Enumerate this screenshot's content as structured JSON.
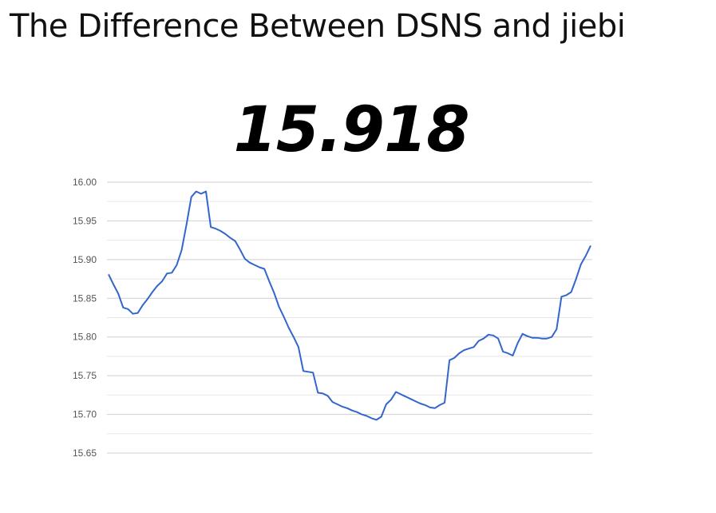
{
  "header": {
    "title": "The Difference Between DSNS and jiebi"
  },
  "current_value": "15.918",
  "chart_data": {
    "type": "line",
    "title": "",
    "xlabel": "",
    "ylabel": "",
    "ylim": [
      15.65,
      16.0
    ],
    "yticks": [
      "16.00",
      "15.95",
      "15.90",
      "15.85",
      "15.80",
      "15.75",
      "15.70",
      "15.65"
    ],
    "grid": true,
    "series": [
      {
        "color": "#3366cc",
        "values": [
          15.881,
          15.868,
          15.856,
          15.838,
          15.836,
          15.83,
          15.831,
          15.841,
          15.849,
          15.858,
          15.866,
          15.872,
          15.882,
          15.883,
          15.893,
          15.912,
          15.945,
          15.981,
          15.988,
          15.985,
          15.988,
          15.942,
          15.94,
          15.937,
          15.933,
          15.928,
          15.924,
          15.913,
          15.901,
          15.896,
          15.893,
          15.89,
          15.888,
          15.872,
          15.857,
          15.839,
          15.826,
          15.812,
          15.8,
          15.787,
          15.756,
          15.755,
          15.754,
          15.728,
          15.727,
          15.724,
          15.716,
          15.713,
          15.71,
          15.708,
          15.705,
          15.703,
          15.7,
          15.698,
          15.695,
          15.693,
          15.697,
          15.713,
          15.719,
          15.729,
          15.726,
          15.723,
          15.72,
          15.717,
          15.714,
          15.712,
          15.709,
          15.708,
          15.712,
          15.715,
          15.77,
          15.773,
          15.779,
          15.783,
          15.785,
          15.787,
          15.795,
          15.798,
          15.803,
          15.802,
          15.798,
          15.781,
          15.779,
          15.776,
          15.792,
          15.804,
          15.801,
          15.799,
          15.799,
          15.798,
          15.798,
          15.8,
          15.81,
          15.852,
          15.854,
          15.858,
          15.875,
          15.894,
          15.905,
          15.918
        ]
      }
    ]
  }
}
